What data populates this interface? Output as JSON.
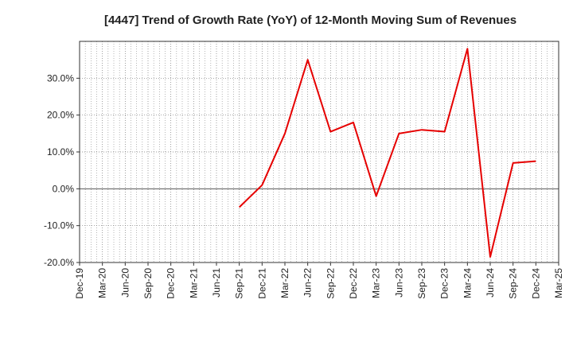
{
  "chart_data": {
    "type": "line",
    "title": "[4447]  Trend of Growth Rate (YoY) of 12-Month Moving Sum of Revenues",
    "xlabel": "",
    "ylabel": "",
    "ylim": [
      -20,
      40
    ],
    "yticks": [
      30,
      20,
      10,
      0,
      -10,
      -20
    ],
    "ytick_labels": [
      "30.0%",
      "20.0%",
      "10.0%",
      "0.0%",
      "-10.0%",
      "-20.0%"
    ],
    "x_categories": [
      "Dec-19",
      "Mar-20",
      "Jun-20",
      "Sep-20",
      "Dec-20",
      "Mar-21",
      "Jun-21",
      "Sep-21",
      "Dec-21",
      "Mar-22",
      "Jun-22",
      "Sep-22",
      "Dec-22",
      "Mar-23",
      "Jun-23",
      "Sep-23",
      "Dec-23",
      "Mar-24",
      "Jun-24",
      "Sep-24",
      "Dec-24",
      "Mar-25"
    ],
    "grid": true,
    "line_color": "#e60000",
    "series": [
      {
        "values": [
          null,
          null,
          null,
          null,
          null,
          null,
          null,
          -5.0,
          1.0,
          15.0,
          35.0,
          15.5,
          18.0,
          -2.0,
          15.0,
          16.0,
          15.5,
          38.0,
          -18.5,
          7.0,
          7.5,
          null
        ]
      }
    ]
  }
}
